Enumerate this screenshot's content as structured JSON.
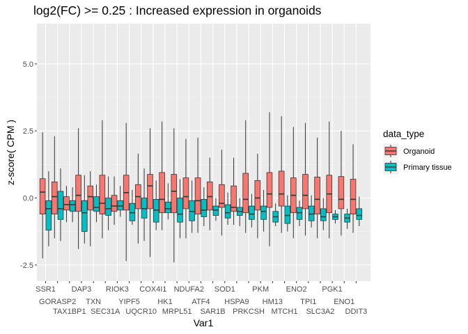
{
  "chart_data": {
    "type": "boxplot",
    "title": "log2(FC) >= 0.25 : Increased expression in organoids",
    "xlabel": "Var1",
    "ylabel": "z-score( CPM )",
    "ylim": [
      -3.1,
      6.5
    ],
    "yticks": [
      -2.5,
      0.0,
      2.5,
      5.0
    ],
    "ytick_labels": [
      "-2.5",
      "0.0",
      "2.5",
      "5.0"
    ],
    "grid": true,
    "legend": {
      "title": "data_type",
      "position": "right",
      "entries": [
        {
          "name": "Organoid",
          "color": "#F8766D"
        },
        {
          "name": "Primary tissue",
          "color": "#00BFC4"
        }
      ]
    },
    "categories": [
      "SSR1",
      "GORASP2",
      "TAX1BP1",
      "DAP3",
      "TXN",
      "SEC31A",
      "RIOK3",
      "YIPF5",
      "UQCR10",
      "COX4I1",
      "HK1",
      "MRPL51",
      "NDUFA2",
      "ATF4",
      "SAR1B",
      "SOD1",
      "HSPA9",
      "PRKCSH",
      "PKM",
      "HM13",
      "MTCH1",
      "ENO2",
      "TPI1",
      "SLC3A2",
      "PGK1",
      "ENO1",
      "DDIT3"
    ],
    "series": [
      {
        "name": "Organoid",
        "color": "#F8766D",
        "boxes": [
          {
            "low": -2.25,
            "q1": -0.6,
            "median": 0.22,
            "q3": 0.72,
            "high": 2.45
          },
          {
            "low": -1.5,
            "q1": -0.6,
            "median": 0.05,
            "q3": 0.6,
            "high": 2.3
          },
          {
            "low": -0.9,
            "q1": -0.45,
            "median": -0.25,
            "q3": 0.05,
            "high": 0.45
          },
          {
            "low": -1.9,
            "q1": -0.5,
            "median": 0.1,
            "q3": 0.85,
            "high": 2.6
          },
          {
            "low": -1.8,
            "q1": -0.45,
            "median": 0.05,
            "q3": 0.45,
            "high": 1.0
          },
          {
            "low": -1.5,
            "q1": -0.6,
            "median": -0.2,
            "q3": 0.85,
            "high": 2.9
          },
          {
            "low": -1.0,
            "q1": -0.5,
            "median": -0.3,
            "q3": 0.1,
            "high": 0.8
          },
          {
            "low": -2.35,
            "q1": -0.45,
            "median": 0.2,
            "q3": 0.85,
            "high": 2.8
          },
          {
            "low": -1.7,
            "q1": -0.4,
            "median": 0.05,
            "q3": 0.5,
            "high": 1.65
          },
          {
            "low": -2.2,
            "q1": -0.4,
            "median": 0.45,
            "q3": 0.88,
            "high": 2.6
          },
          {
            "low": -1.2,
            "q1": -0.55,
            "median": -0.05,
            "q3": 0.95,
            "high": 2.85
          },
          {
            "low": -2.4,
            "q1": -0.55,
            "median": 0.25,
            "q3": 0.88,
            "high": 2.6
          },
          {
            "low": -1.5,
            "q1": -0.4,
            "median": 0.05,
            "q3": 0.75,
            "high": 2.2
          },
          {
            "low": -1.3,
            "q1": -0.6,
            "median": -0.1,
            "q3": 0.75,
            "high": 2.25
          },
          {
            "low": -1.2,
            "q1": -0.45,
            "median": 0.05,
            "q3": 0.6,
            "high": 1.5
          },
          {
            "low": -1.4,
            "q1": -0.35,
            "median": -0.2,
            "q3": 0.5,
            "high": 1.8
          },
          {
            "low": -1.0,
            "q1": -0.5,
            "median": -0.35,
            "q3": 0.45,
            "high": 1.5
          },
          {
            "low": -1.3,
            "q1": -0.55,
            "median": -0.05,
            "q3": 0.92,
            "high": 2.9
          },
          {
            "low": -1.5,
            "q1": -0.45,
            "median": 0.0,
            "q3": 0.65,
            "high": 1.65
          },
          {
            "low": -1.8,
            "q1": -0.35,
            "median": 0.15,
            "q3": 0.95,
            "high": 3.2
          },
          {
            "low": -1.3,
            "q1": -0.3,
            "median": 0.15,
            "q3": 1.0,
            "high": 3.05
          },
          {
            "low": -1.5,
            "q1": -0.55,
            "median": 0.1,
            "q3": 0.75,
            "high": 2.65
          },
          {
            "low": -1.4,
            "q1": -0.4,
            "median": 0.1,
            "q3": 0.88,
            "high": 2.8
          },
          {
            "low": -1.5,
            "q1": -0.6,
            "median": -0.05,
            "q3": 0.78,
            "high": 2.25
          },
          {
            "low": -1.5,
            "q1": -0.55,
            "median": 0.15,
            "q3": 0.85,
            "high": 2.85
          },
          {
            "low": -1.4,
            "q1": -0.4,
            "median": -0.05,
            "q3": 0.8,
            "high": 2.5
          },
          {
            "low": -1.3,
            "q1": -0.6,
            "median": -0.05,
            "q3": 0.7,
            "high": 2.0
          }
        ]
      },
      {
        "name": "Primary tissue",
        "color": "#00BFC4",
        "boxes": [
          {
            "low": -1.8,
            "q1": -1.2,
            "median": -0.4,
            "q3": -0.1,
            "high": 1.0
          },
          {
            "low": -1.6,
            "q1": -0.8,
            "median": -0.4,
            "q3": 0.25,
            "high": 1.1
          },
          {
            "low": -0.9,
            "q1": -0.5,
            "median": -0.25,
            "q3": -0.1,
            "high": 0.4
          },
          {
            "low": -1.7,
            "q1": -1.25,
            "median": -0.55,
            "q3": -0.1,
            "high": 0.85
          },
          {
            "low": -0.9,
            "q1": -0.5,
            "median": -0.35,
            "q3": 0.05,
            "high": 0.5
          },
          {
            "low": -1.2,
            "q1": -0.65,
            "median": -0.4,
            "q3": 0.0,
            "high": 0.8
          },
          {
            "low": -0.7,
            "q1": -0.45,
            "median": -0.3,
            "q3": -0.1,
            "high": 0.45
          },
          {
            "low": -1.0,
            "q1": -0.85,
            "median": -0.55,
            "q3": -0.2,
            "high": 0.3
          },
          {
            "low": -1.6,
            "q1": -0.75,
            "median": -0.4,
            "q3": 0.0,
            "high": 1.1
          },
          {
            "low": -1.2,
            "q1": -0.9,
            "median": -0.45,
            "q3": -0.05,
            "high": 0.65
          },
          {
            "low": -0.8,
            "q1": -0.55,
            "median": -0.4,
            "q3": -0.15,
            "high": 0.55
          },
          {
            "low": -1.5,
            "q1": -0.9,
            "median": -0.6,
            "q3": 0.0,
            "high": 0.7
          },
          {
            "low": -1.3,
            "q1": -0.85,
            "median": -0.5,
            "q3": -0.1,
            "high": 0.65
          },
          {
            "low": -1.05,
            "q1": -0.7,
            "median": -0.45,
            "q3": -0.05,
            "high": 0.4
          },
          {
            "low": -0.85,
            "q1": -0.65,
            "median": -0.45,
            "q3": -0.3,
            "high": 0.0
          },
          {
            "low": -1.0,
            "q1": -0.75,
            "median": -0.55,
            "q3": -0.25,
            "high": 0.2
          },
          {
            "low": -1.05,
            "q1": -0.65,
            "median": -0.5,
            "q3": -0.35,
            "high": 0.0
          },
          {
            "low": -1.1,
            "q1": -0.8,
            "median": -0.6,
            "q3": -0.3,
            "high": 0.15
          },
          {
            "low": -1.25,
            "q1": -0.8,
            "median": -0.5,
            "q3": -0.3,
            "high": 0.3
          },
          {
            "low": -1.05,
            "q1": -0.9,
            "median": -0.7,
            "q3": -0.5,
            "high": -0.2
          },
          {
            "low": -1.25,
            "q1": -0.95,
            "median": -0.65,
            "q3": -0.3,
            "high": 0.1
          },
          {
            "low": -1.05,
            "q1": -0.8,
            "median": -0.55,
            "q3": -0.35,
            "high": -0.1
          },
          {
            "low": -1.1,
            "q1": -0.85,
            "median": -0.6,
            "q3": -0.3,
            "high": 0.1
          },
          {
            "low": -1.2,
            "q1": -0.85,
            "median": -0.7,
            "q3": -0.4,
            "high": 0.0
          },
          {
            "low": -0.95,
            "q1": -0.8,
            "median": -0.7,
            "q3": -0.6,
            "high": -0.45
          },
          {
            "low": -1.15,
            "q1": -0.9,
            "median": -0.75,
            "q3": -0.6,
            "high": -0.4
          },
          {
            "low": -1.05,
            "q1": -0.8,
            "median": -0.65,
            "q3": -0.4,
            "high": 0.05
          }
        ]
      }
    ]
  }
}
